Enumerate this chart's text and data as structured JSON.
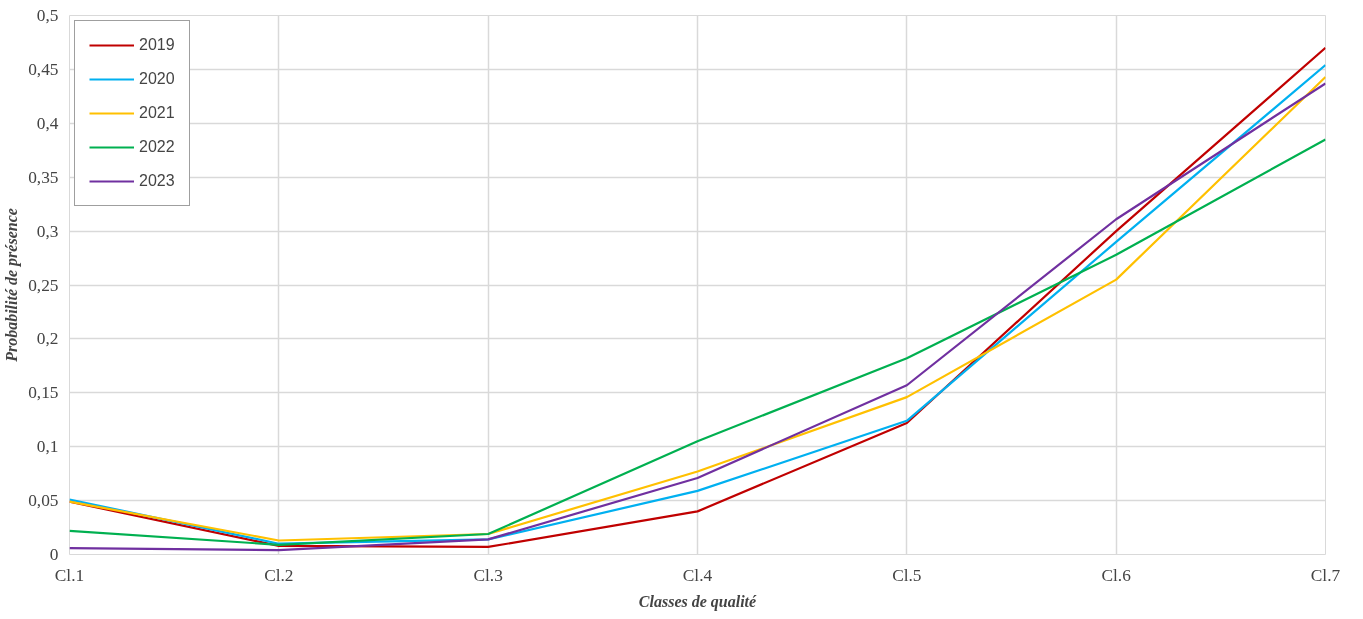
{
  "chart_data": {
    "type": "line",
    "xlabel": "Classes de qualité",
    "ylabel": "Probabilité de présence",
    "categories": [
      "Cl.1",
      "Cl.2",
      "Cl.3",
      "Cl.4",
      "Cl.5",
      "Cl.6",
      "Cl.7"
    ],
    "series": [
      {
        "name": "2019",
        "color": "#c00000",
        "values": [
          0.049,
          0.008,
          0.007,
          0.04,
          0.122,
          0.3,
          0.47
        ]
      },
      {
        "name": "2020",
        "color": "#00b0f0",
        "values": [
          0.051,
          0.01,
          0.014,
          0.059,
          0.124,
          0.29,
          0.454
        ]
      },
      {
        "name": "2021",
        "color": "#ffc000",
        "values": [
          0.049,
          0.013,
          0.019,
          0.077,
          0.146,
          0.255,
          0.443
        ]
      },
      {
        "name": "2022",
        "color": "#00b050",
        "values": [
          0.022,
          0.009,
          0.019,
          0.105,
          0.182,
          0.278,
          0.385
        ]
      },
      {
        "name": "2023",
        "color": "#7030a0",
        "values": [
          0.006,
          0.004,
          0.014,
          0.071,
          0.157,
          0.311,
          0.437
        ]
      }
    ],
    "ylim": [
      0,
      0.5
    ],
    "yticks": [
      0,
      {
        "value": 0.05,
        "label": "0,05"
      },
      {
        "value": 0.1,
        "label": "0,1"
      },
      {
        "value": 0.15,
        "label": "0,15"
      },
      {
        "value": 0.2,
        "label": "0,2"
      },
      {
        "value": 0.25,
        "label": "0,25"
      },
      {
        "value": 0.3,
        "label": "0,3"
      },
      {
        "value": 0.35,
        "label": "0,35"
      },
      {
        "value": 0.4,
        "label": "0,4"
      },
      {
        "value": 0.45,
        "label": "0,45"
      },
      {
        "value": 0.5,
        "label": "0,5"
      }
    ],
    "grid": true,
    "legend": "top left",
    "marker": "none",
    "line_style": "solid"
  }
}
